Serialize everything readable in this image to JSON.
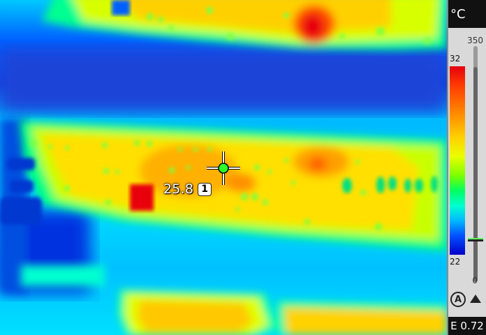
{
  "scale": {
    "unit": "°C",
    "range_max": "350",
    "range_min": "0",
    "span_max": "32",
    "span_min": "22",
    "span_fraction": {
      "top": 0.91,
      "bottom": 0.0
    }
  },
  "spot": {
    "value": "25.8",
    "index": "1"
  },
  "status": {
    "emissivity": "E 0.72"
  },
  "icons": {
    "auto_mode": "auto-mode-icon",
    "adjust_up": "up-arrow-icon",
    "crosshair": "crosshair-icon"
  },
  "colors": {
    "hot": "#e4000f",
    "warm": "#ffd200",
    "mid": "#00ff60",
    "cool": "#00b8ff",
    "cold": "#0000c8"
  }
}
